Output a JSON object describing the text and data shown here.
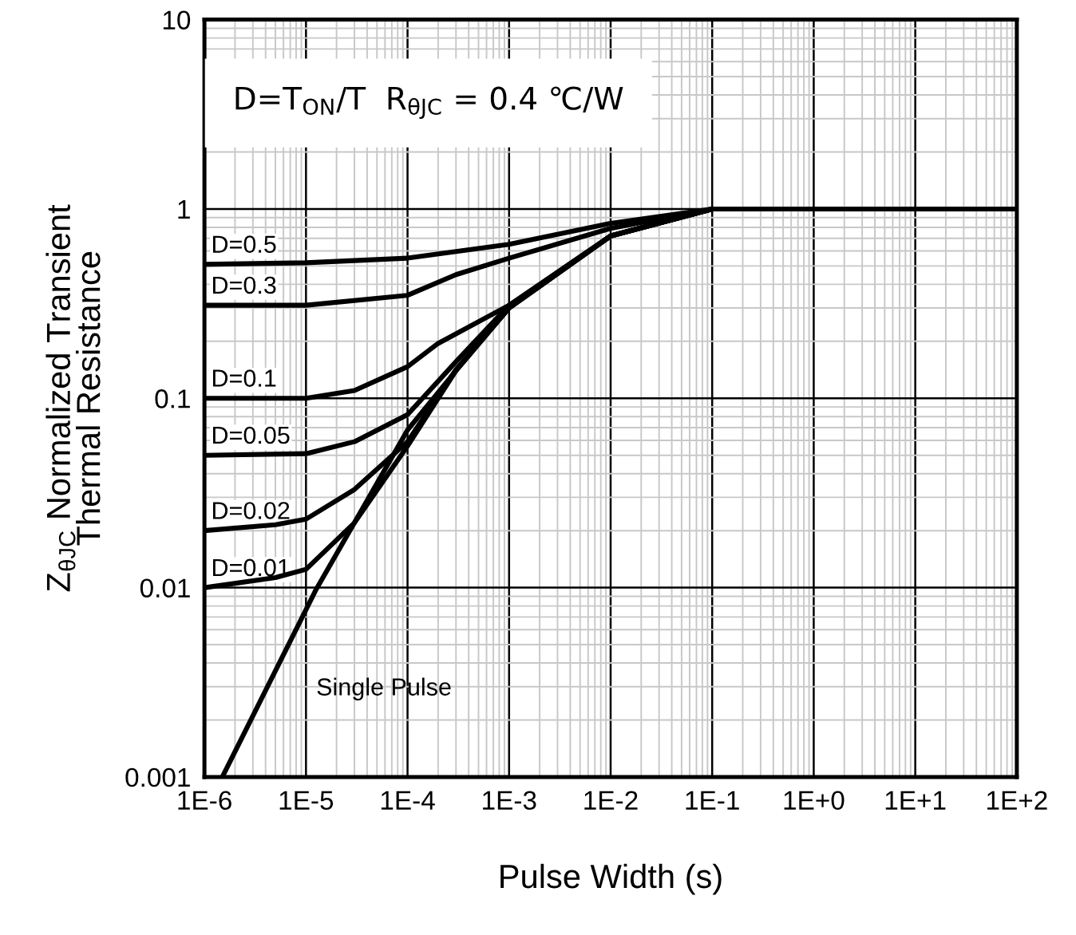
{
  "chart_data": {
    "type": "line",
    "xlabel": "Pulse Width (s)",
    "ylabel": "Z$_{θJC}$ Normalized Transient\nThermal Resistance",
    "log": "xy",
    "grid": true,
    "line_style": "solid",
    "marker": "none",
    "xlim": [
      1e-06,
      100
    ],
    "ylim": [
      0.001,
      10
    ],
    "xticks": [
      {
        "value": 1e-06,
        "label": "1E-6"
      },
      {
        "value": 1e-05,
        "label": "1E-5"
      },
      {
        "value": 0.0001,
        "label": "1E-4"
      },
      {
        "value": 0.001,
        "label": "1E-3"
      },
      {
        "value": 0.01,
        "label": "1E-2"
      },
      {
        "value": 0.1,
        "label": "1E-1"
      },
      {
        "value": 1,
        "label": "1E+0"
      },
      {
        "value": 10,
        "label": "1E+1"
      },
      {
        "value": 100,
        "label": "1E+2"
      }
    ],
    "yticks": [
      {
        "value": 0.001,
        "label": "0.001"
      },
      {
        "value": 0.01,
        "label": "0.01"
      },
      {
        "value": 0.1,
        "label": "0.1"
      },
      1,
      10
    ],
    "series": [
      {
        "name": "D=0.5",
        "color": "#000000",
        "x": [
          1e-06,
          1e-05,
          0.0001,
          0.001,
          0.01,
          0.1,
          100
        ],
        "values": [
          0.51,
          0.52,
          0.55,
          0.65,
          0.84,
          1.0,
          1.0
        ]
      },
      {
        "name": "D=0.3",
        "color": "#000000",
        "x": [
          1e-06,
          1e-05,
          0.0001,
          0.0003,
          0.001,
          0.01,
          0.1,
          100
        ],
        "values": [
          0.31,
          0.31,
          0.35,
          0.45,
          0.55,
          0.79,
          1.0,
          1.0
        ]
      },
      {
        "name": "D=0.1",
        "color": "#000000",
        "x": [
          1e-06,
          1e-05,
          3e-05,
          0.0001,
          0.0002,
          0.001,
          0.01,
          0.1,
          100
        ],
        "values": [
          0.1,
          0.1,
          0.11,
          0.147,
          0.195,
          0.31,
          0.72,
          1.0,
          1.0
        ]
      },
      {
        "name": "D=0.05",
        "color": "#000000",
        "x": [
          1e-06,
          1e-05,
          3e-05,
          0.0001,
          0.0003,
          0.001,
          0.01,
          0.1,
          100
        ],
        "values": [
          0.05,
          0.051,
          0.059,
          0.082,
          0.156,
          0.31,
          0.72,
          1.0,
          1.0
        ]
      },
      {
        "name": "D=0.02",
        "color": "#000000",
        "x": [
          1e-06,
          5e-06,
          1e-05,
          3e-05,
          0.0001,
          0.0003,
          0.001,
          0.01,
          0.1,
          100
        ],
        "values": [
          0.02,
          0.0215,
          0.023,
          0.033,
          0.059,
          0.142,
          0.3,
          0.72,
          1.0,
          1.0
        ]
      },
      {
        "name": "D=0.01",
        "color": "#000000",
        "x": [
          1e-06,
          5e-06,
          1e-05,
          3e-05,
          0.0001,
          0.0003,
          0.001,
          0.01,
          0.1,
          100
        ],
        "values": [
          0.01,
          0.0113,
          0.0125,
          0.022,
          0.056,
          0.14,
          0.3,
          0.72,
          1.0,
          1.0
        ]
      },
      {
        "name": "Single Pulse",
        "color": "#000000",
        "x": [
          1.5e-06,
          1.26e-05,
          0.0001,
          0.0003,
          0.001,
          0.01,
          0.1,
          100
        ],
        "values": [
          0.001,
          0.0098,
          0.068,
          0.14,
          0.3,
          0.72,
          1.0,
          1.0
        ]
      }
    ],
    "annotations": [
      "D=T$_{ON}$/T  R$_{θJC}$ = 0.4 ℃/W"
    ]
  }
}
